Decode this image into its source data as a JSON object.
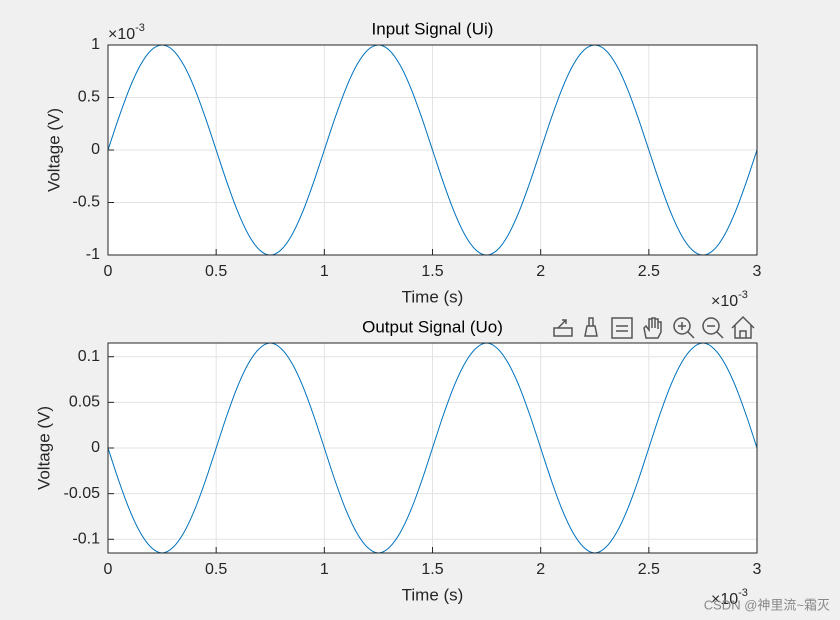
{
  "chart_data": [
    {
      "type": "line",
      "title": "Input Signal (Ui)",
      "xlabel": "Time (s)",
      "ylabel": "Voltage (V)",
      "color": "#0072bd",
      "grid": true,
      "x_scale_label": {
        "base": "×10",
        "power": "-3"
      },
      "y_scale_label": {
        "base": "×10",
        "power": "-3"
      },
      "xlim": [
        0,
        3
      ],
      "xticks": [
        0,
        0.5,
        1,
        1.5,
        2,
        2.5,
        3
      ],
      "ylim": [
        -1,
        1
      ],
      "yticks": [
        -1,
        -0.5,
        0,
        0.5,
        1
      ],
      "x": [
        0,
        0.05,
        0.1,
        0.15,
        0.2,
        0.25,
        0.3,
        0.35,
        0.4,
        0.45,
        0.5,
        0.55,
        0.6,
        0.65,
        0.7,
        0.75,
        0.8,
        0.85,
        0.9,
        0.95,
        1,
        1.05,
        1.1,
        1.15,
        1.2,
        1.25,
        1.3,
        1.35,
        1.4,
        1.45,
        1.5,
        1.55,
        1.6,
        1.65,
        1.7,
        1.75,
        1.8,
        1.85,
        1.9,
        1.95,
        2,
        2.05,
        2.1,
        2.15,
        2.2,
        2.25,
        2.3,
        2.35,
        2.4,
        2.45,
        2.5,
        2.55,
        2.6,
        2.65,
        2.7,
        2.75,
        2.8,
        2.85,
        2.9,
        2.95,
        3
      ],
      "values": [
        0,
        0.309,
        0.588,
        0.809,
        0.951,
        1,
        0.951,
        0.809,
        0.588,
        0.309,
        0,
        -0.309,
        -0.588,
        -0.809,
        -0.951,
        -1,
        -0.951,
        -0.809,
        -0.588,
        -0.309,
        0,
        0.309,
        0.588,
        0.809,
        0.951,
        1,
        0.951,
        0.809,
        0.588,
        0.309,
        0,
        -0.309,
        -0.588,
        -0.809,
        -0.951,
        -1,
        -0.951,
        -0.809,
        -0.588,
        -0.309,
        0,
        0.309,
        0.588,
        0.809,
        0.951,
        1,
        0.951,
        0.809,
        0.588,
        0.309,
        0,
        -0.309,
        -0.588,
        -0.809,
        -0.951,
        -1,
        -0.951,
        -0.809,
        -0.588,
        -0.309,
        0
      ]
    },
    {
      "type": "line",
      "title": "Output Signal (Uo)",
      "xlabel": "Time (s)",
      "ylabel": "Voltage (V)",
      "color": "#0072bd",
      "grid": true,
      "x_scale_label": {
        "base": "×10",
        "power": "-3"
      },
      "xlim": [
        0,
        3
      ],
      "xticks": [
        0,
        0.5,
        1,
        1.5,
        2,
        2.5,
        3
      ],
      "ylim": [
        -0.115,
        0.115
      ],
      "yticks": [
        -0.1,
        -0.05,
        0,
        0.05,
        0.1
      ],
      "x": [
        0,
        0.05,
        0.1,
        0.15,
        0.2,
        0.25,
        0.3,
        0.35,
        0.4,
        0.45,
        0.5,
        0.55,
        0.6,
        0.65,
        0.7,
        0.75,
        0.8,
        0.85,
        0.9,
        0.95,
        1,
        1.05,
        1.1,
        1.15,
        1.2,
        1.25,
        1.3,
        1.35,
        1.4,
        1.45,
        1.5,
        1.55,
        1.6,
        1.65,
        1.7,
        1.75,
        1.8,
        1.85,
        1.9,
        1.95,
        2,
        2.05,
        2.1,
        2.15,
        2.2,
        2.25,
        2.3,
        2.35,
        2.4,
        2.45,
        2.5,
        2.55,
        2.6,
        2.65,
        2.7,
        2.75,
        2.8,
        2.85,
        2.9,
        2.95,
        3
      ],
      "values": [
        0,
        -0.036,
        -0.068,
        -0.093,
        -0.109,
        -0.115,
        -0.109,
        -0.093,
        -0.068,
        -0.036,
        0,
        0.036,
        0.068,
        0.093,
        0.109,
        0.115,
        0.109,
        0.093,
        0.068,
        0.036,
        0,
        -0.036,
        -0.068,
        -0.093,
        -0.109,
        -0.115,
        -0.109,
        -0.093,
        -0.068,
        -0.036,
        0,
        0.036,
        0.068,
        0.093,
        0.109,
        0.115,
        0.109,
        0.093,
        0.068,
        0.036,
        0,
        -0.036,
        -0.068,
        -0.093,
        -0.109,
        -0.115,
        -0.109,
        -0.093,
        -0.068,
        -0.036,
        0,
        0.036,
        0.068,
        0.093,
        0.109,
        0.115,
        0.109,
        0.093,
        0.068,
        0.036,
        0
      ]
    }
  ],
  "watermark": "CSDN @神里流~霜灭"
}
